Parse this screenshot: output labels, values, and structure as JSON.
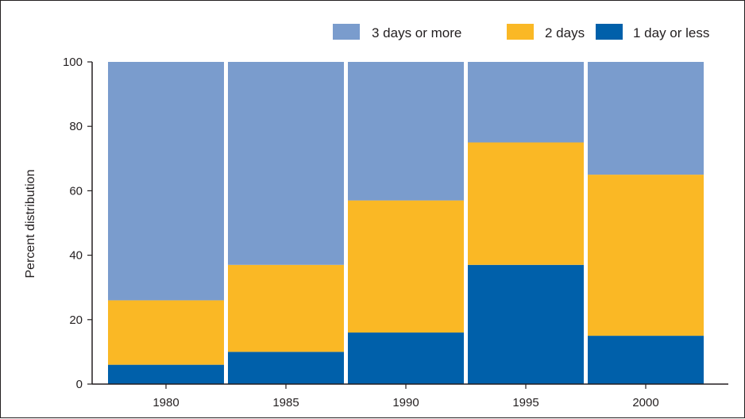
{
  "chart_data": {
    "type": "bar",
    "stacked": true,
    "title": "",
    "xlabel": "",
    "ylabel": "Percent distribution",
    "categories": [
      "1980",
      "1985",
      "1990",
      "1995",
      "2000"
    ],
    "ylim": [
      0,
      100
    ],
    "yticks": [
      0,
      20,
      40,
      60,
      80,
      100
    ],
    "legend_position": "top-right",
    "grid": false,
    "series": [
      {
        "name": "1 day or less",
        "color": "#0060aa",
        "values": [
          6,
          10,
          16,
          37,
          15
        ]
      },
      {
        "name": "2 days",
        "color": "#fab825",
        "values": [
          20,
          27,
          41,
          38,
          50
        ]
      },
      {
        "name": "3 days or more",
        "color": "#7a9ccd",
        "values": [
          74,
          63,
          43,
          25,
          35
        ]
      }
    ],
    "legend_order": [
      "3 days or more",
      "2 days",
      "1 day or less"
    ]
  }
}
